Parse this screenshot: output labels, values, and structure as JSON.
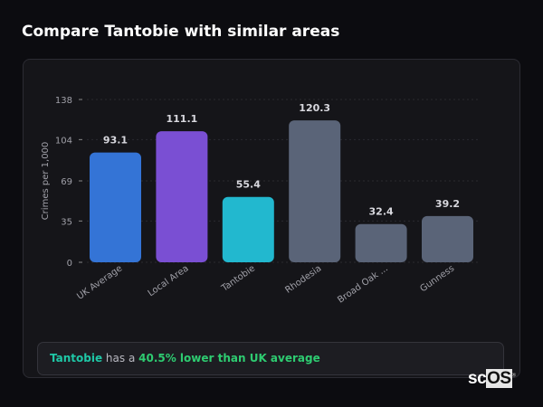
{
  "title": "Compare Tantobie with similar areas",
  "chart_data": {
    "type": "bar",
    "ylabel": "Crimes per 1,000",
    "xlabel": "",
    "yticks": [
      0,
      35,
      69,
      104,
      138
    ],
    "ylim": [
      0,
      138
    ],
    "grid": true,
    "categories": [
      "UK Average",
      "Local Area",
      "Tantobie",
      "Rhodesia",
      "Broad Oak ...",
      "Gunness"
    ],
    "values": [
      93.1,
      111.1,
      55.4,
      120.3,
      32.4,
      39.2
    ],
    "value_labels": [
      "93.1",
      "111.1",
      "55.4",
      "120.3",
      "32.4",
      "39.2"
    ],
    "colors": [
      "#3474d6",
      "#7a4fd3",
      "#22b8cf",
      "#5a6478",
      "#5a6478",
      "#5a6478"
    ]
  },
  "footer": {
    "area": "Tantobie",
    "mid": " has a ",
    "stat": "40.5% lower than UK average"
  },
  "logo": {
    "text_a": "sc",
    "text_b": "OS",
    "mark": "®"
  }
}
